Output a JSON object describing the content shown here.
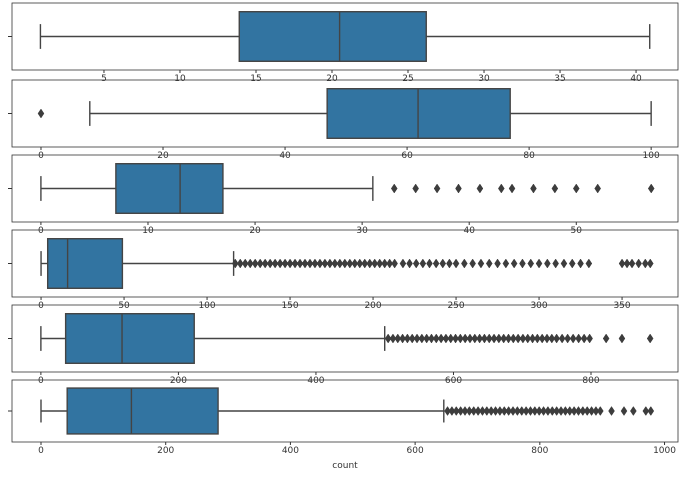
{
  "chart_data": [
    {
      "type": "box",
      "color": "#3274a1",
      "xlim": [
        -1.05,
        42.76
      ],
      "xticks": [
        5,
        10,
        15,
        20,
        25,
        30,
        35,
        40
      ],
      "whisker_low": 0.82,
      "q1": 13.9,
      "median": 20.5,
      "q3": 26.2,
      "whisker_high": 40.9,
      "outliers": []
    },
    {
      "type": "box",
      "color": "#3274a1",
      "xlim": [
        -4.75,
        104.4
      ],
      "xticks": [
        0,
        20,
        40,
        60,
        80,
        100
      ],
      "whisker_low": 8,
      "q1": 46.9,
      "median": 61.8,
      "q3": 76.9,
      "whisker_high": 100,
      "outliers": [
        0
      ]
    },
    {
      "type": "box",
      "color": "#3274a1",
      "xlim": [
        -2.7,
        59.5
      ],
      "xticks": [
        0,
        10,
        20,
        30,
        40,
        50
      ],
      "whisker_low": 0,
      "q1": 7,
      "median": 13,
      "q3": 17,
      "whisker_high": 31,
      "outliers": [
        33,
        35,
        37,
        39,
        41,
        43,
        44,
        46,
        48,
        50,
        52,
        57
      ]
    },
    {
      "type": "box",
      "color": "#3274a1",
      "xlim": [
        -17.5,
        383.7
      ],
      "xticks": [
        0,
        50,
        100,
        150,
        200,
        250,
        300,
        350
      ],
      "whisker_low": 0,
      "q1": 4,
      "median": 16,
      "q3": 49,
      "whisker_high": 116,
      "outliers": [
        117,
        120,
        123,
        126,
        129,
        132,
        135,
        138,
        141,
        144,
        147,
        150,
        153,
        156,
        159,
        162,
        165,
        168,
        171,
        174,
        177,
        180,
        183,
        186,
        189,
        192,
        195,
        198,
        201,
        204,
        207,
        210,
        213,
        218,
        222,
        226,
        230,
        234,
        238,
        242,
        246,
        250,
        255,
        260,
        265,
        270,
        275,
        280,
        285,
        290,
        295,
        300,
        305,
        310,
        315,
        320,
        325,
        330,
        350,
        353,
        356,
        360,
        364,
        367
      ]
    },
    {
      "type": "box",
      "color": "#3274a1",
      "xlim": [
        -42,
        926.5
      ],
      "xticks": [
        0,
        200,
        400,
        600,
        800
      ],
      "whisker_low": 0,
      "q1": 36,
      "median": 118,
      "q3": 223,
      "whisker_high": 500,
      "outliers": [
        505,
        512,
        519,
        526,
        533,
        540,
        547,
        554,
        561,
        568,
        575,
        582,
        589,
        596,
        603,
        610,
        617,
        624,
        631,
        638,
        645,
        652,
        659,
        666,
        673,
        680,
        687,
        694,
        701,
        708,
        715,
        722,
        729,
        736,
        743,
        750,
        758,
        766,
        774,
        782,
        790,
        798,
        822,
        845,
        886
      ]
    },
    {
      "type": "box",
      "color": "#3274a1",
      "xlim": [
        -46.5,
        1021.6
      ],
      "xticks": [
        0,
        200,
        400,
        600,
        800,
        1000
      ],
      "xlabel": "count",
      "whisker_low": 0,
      "q1": 42,
      "median": 145,
      "q3": 284,
      "whisker_high": 646,
      "outliers": [
        652,
        659,
        666,
        673,
        680,
        687,
        694,
        701,
        708,
        715,
        722,
        729,
        736,
        743,
        750,
        757,
        764,
        771,
        778,
        785,
        792,
        799,
        806,
        813,
        820,
        827,
        834,
        841,
        848,
        855,
        862,
        869,
        876,
        883,
        890,
        897,
        915,
        935,
        950,
        970,
        978
      ]
    }
  ]
}
